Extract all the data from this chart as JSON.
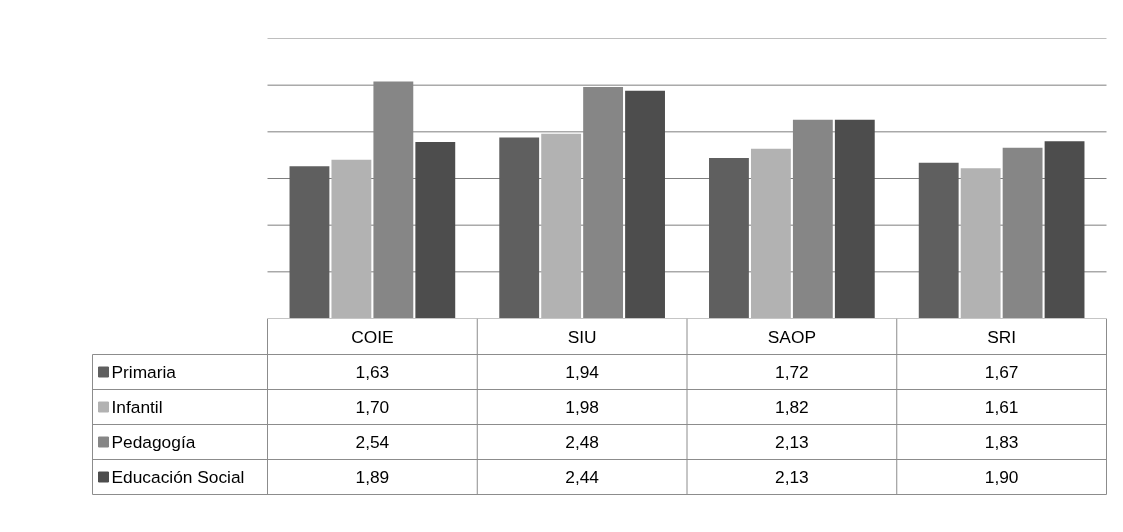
{
  "chart_data": {
    "type": "bar",
    "categories": [
      "COIE",
      "SIU",
      "SAOP",
      "SRI"
    ],
    "series": [
      {
        "name": "Primaria",
        "color": "#5f5f5f",
        "values": [
          1.63,
          1.94,
          1.72,
          1.67
        ],
        "value_labels": [
          "1,63",
          "1,94",
          "1,72",
          "1,67"
        ]
      },
      {
        "name": "Infantil",
        "color": "#b2b2b2",
        "values": [
          1.7,
          1.98,
          1.82,
          1.61
        ],
        "value_labels": [
          "1,70",
          "1,98",
          "1,82",
          "1,61"
        ]
      },
      {
        "name": "Pedagogía",
        "color": "#868686",
        "values": [
          2.54,
          2.48,
          2.13,
          1.83
        ],
        "value_labels": [
          "2,54",
          "2,48",
          "2,13",
          "1,83"
        ]
      },
      {
        "name": "Educación Social",
        "color": "#4d4d4d",
        "values": [
          1.89,
          2.44,
          2.13,
          1.9
        ],
        "value_labels": [
          "1,89",
          "2,44",
          "2,13",
          "1,90"
        ]
      }
    ],
    "ylim": [
      0,
      3
    ],
    "yticks": [
      {
        "value": 0,
        "label": null
      },
      {
        "value": 0.5,
        "label": null
      },
      {
        "value": 1,
        "label": null
      },
      {
        "value": 1.5,
        "label": null
      },
      {
        "value": 2,
        "label": null
      },
      {
        "value": 2.5,
        "label": null
      },
      {
        "value": 3,
        "label": null
      }
    ],
    "grid": "y",
    "legend": "bottom left",
    "tick_labels": "x"
  }
}
